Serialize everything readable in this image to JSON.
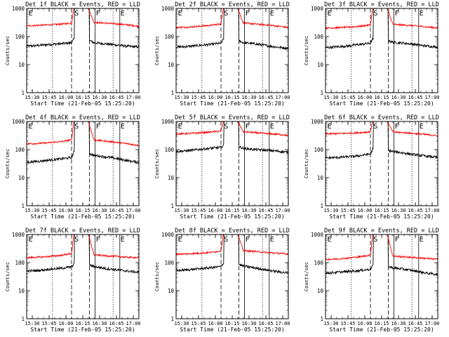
{
  "chart_data": {
    "type": "line",
    "grid": false,
    "yscale": "log",
    "ylim": [
      1,
      1000
    ],
    "xlim": [
      "15:25",
      "17:05"
    ],
    "xlabel": "Start Time (21-Feb-05 15:25:20)",
    "ylabel": "Counts/sec",
    "x_ticks": [
      "15:30",
      "15:45",
      "16:00",
      "16:15",
      "16:30",
      "16:45",
      "17:00"
    ],
    "y_ticks": [
      "1",
      "10",
      "100",
      "1000"
    ],
    "marker_lines": [
      {
        "time": "15:48",
        "label": "",
        "style": "dotted"
      },
      {
        "time": "16:05",
        "label": "",
        "style": "dashed"
      },
      {
        "time": "16:21",
        "label": "",
        "style": "dashed"
      },
      {
        "time": "16:26",
        "label": "",
        "style": "solid"
      },
      {
        "time": "16:42",
        "label": "",
        "style": "dotted"
      },
      {
        "time": "16:48",
        "label": "",
        "style": "solid"
      }
    ],
    "corner_marks": [
      {
        "label": "E",
        "time": "15:26"
      },
      {
        "label": "S",
        "time": "16:07"
      },
      {
        "label": "F",
        "time": "16:26"
      },
      {
        "label": "E",
        "time": "16:48"
      }
    ],
    "gap": [
      "16:08",
      "16:20"
    ],
    "panels": [
      {
        "title": "Det 1f BLACK = Events, RED = LLD",
        "series": [
          {
            "name": "Events",
            "color": "#000000",
            "x": [
              "15:25",
              "15:35",
              "15:45",
              "15:55",
              "16:05",
              "16:07",
              "16:20",
              "16:25",
              "16:35",
              "16:45",
              "16:55",
              "17:05"
            ],
            "y": [
              45,
              48,
              52,
              55,
              60,
              80,
              75,
              60,
              55,
              50,
              45,
              42
            ]
          },
          {
            "name": "LLD",
            "color": "#ff0000",
            "x": [
              "15:25",
              "15:35",
              "15:45",
              "15:55",
              "16:05",
              "16:07",
              "16:20",
              "16:25",
              "16:35",
              "16:45",
              "16:55",
              "17:05"
            ],
            "y": [
              240,
              250,
              260,
              275,
              300,
              1000,
              1000,
              320,
              300,
              280,
              260,
              230
            ]
          }
        ]
      },
      {
        "title": "Det 2f BLACK = Events, RED = LLD",
        "series": [
          {
            "name": "Events",
            "color": "#000000",
            "x": [
              "15:25",
              "15:35",
              "15:45",
              "15:55",
              "16:05",
              "16:07",
              "16:20",
              "16:25",
              "16:35",
              "16:45",
              "16:55",
              "17:05"
            ],
            "y": [
              42,
              44,
              48,
              52,
              58,
              80,
              75,
              60,
              55,
              48,
              42,
              38
            ]
          },
          {
            "name": "LLD",
            "color": "#ff0000",
            "x": [
              "15:25",
              "15:35",
              "15:45",
              "15:55",
              "16:05",
              "16:07",
              "16:20",
              "16:25",
              "16:35",
              "16:45",
              "16:55",
              "17:05"
            ],
            "y": [
              210,
              215,
              230,
              250,
              280,
              1000,
              1000,
              300,
              280,
              260,
              235,
              210
            ]
          }
        ]
      },
      {
        "title": "Det 3f BLACK = Events, RED = LLD",
        "series": [
          {
            "name": "Events",
            "color": "#000000",
            "x": [
              "15:25",
              "15:35",
              "15:45",
              "15:55",
              "16:05",
              "16:07",
              "16:20",
              "16:25",
              "16:35",
              "16:45",
              "16:55",
              "17:05"
            ],
            "y": [
              40,
              43,
              46,
              52,
              58,
              80,
              75,
              62,
              58,
              52,
              46,
              42
            ]
          },
          {
            "name": "LLD",
            "color": "#ff0000",
            "x": [
              "15:25",
              "15:35",
              "15:45",
              "15:55",
              "16:05",
              "16:07",
              "16:20",
              "16:25",
              "16:35",
              "16:45",
              "16:55",
              "17:05"
            ],
            "y": [
              200,
              205,
              215,
              230,
              260,
              1000,
              1000,
              270,
              255,
              240,
              220,
              200
            ]
          }
        ]
      },
      {
        "title": "Det 4f BLACK = Events, RED = LLD",
        "series": [
          {
            "name": "Events",
            "color": "#000000",
            "x": [
              "15:25",
              "15:35",
              "15:45",
              "15:55",
              "16:05",
              "16:07",
              "16:20",
              "16:25",
              "16:35",
              "16:45",
              "16:55",
              "17:05"
            ],
            "y": [
              35,
              38,
              42,
              46,
              52,
              80,
              75,
              62,
              55,
              48,
              40,
              35
            ]
          },
          {
            "name": "LLD",
            "color": "#ff0000",
            "x": [
              "15:25",
              "15:35",
              "15:45",
              "15:55",
              "16:05",
              "16:07",
              "16:20",
              "16:25",
              "16:35",
              "16:45",
              "16:55",
              "17:05"
            ],
            "y": [
              160,
              165,
              175,
              190,
              220,
              1000,
              1000,
              220,
              200,
              180,
              160,
              140
            ]
          }
        ]
      },
      {
        "title": "Det 5f BLACK = Events, RED = LLD",
        "series": [
          {
            "name": "Events",
            "color": "#000000",
            "x": [
              "15:25",
              "15:35",
              "15:45",
              "15:55",
              "16:05",
              "16:07",
              "16:20",
              "16:25",
              "16:35",
              "16:45",
              "16:55",
              "17:05"
            ],
            "y": [
              85,
              90,
              100,
              110,
              120,
              140,
              130,
              110,
              100,
              95,
              88,
              80
            ]
          },
          {
            "name": "LLD",
            "color": "#ff0000",
            "x": [
              "15:25",
              "15:35",
              "15:45",
              "15:55",
              "16:05",
              "16:07",
              "16:20",
              "16:25",
              "16:35",
              "16:45",
              "16:55",
              "17:05"
            ],
            "y": [
              360,
              370,
              390,
              420,
              450,
              1000,
              1000,
              430,
              400,
              370,
              350,
              320
            ]
          }
        ]
      },
      {
        "title": "Det 6f BLACK = Events, RED = LLD",
        "series": [
          {
            "name": "Events",
            "color": "#000000",
            "x": [
              "15:25",
              "15:35",
              "15:45",
              "15:55",
              "16:05",
              "16:07",
              "16:20",
              "16:25",
              "16:35",
              "16:45",
              "16:55",
              "17:05"
            ],
            "y": [
              50,
              52,
              55,
              60,
              70,
              100,
              95,
              85,
              75,
              65,
              58,
              52
            ]
          },
          {
            "name": "LLD",
            "color": "#ff0000",
            "x": [
              "15:25",
              "15:35",
              "15:45",
              "15:55",
              "16:05",
              "16:07",
              "16:20",
              "16:25",
              "16:35",
              "16:45",
              "16:55",
              "17:05"
            ],
            "y": [
              360,
              370,
              380,
              400,
              430,
              1000,
              1000,
              420,
              400,
              370,
              340,
              310
            ]
          }
        ]
      },
      {
        "title": "Det 7f BLACK = Events, RED = LLD",
        "series": [
          {
            "name": "Events",
            "color": "#000000",
            "x": [
              "15:25",
              "15:35",
              "15:45",
              "15:55",
              "16:05",
              "16:07",
              "16:20",
              "16:25",
              "16:35",
              "16:45",
              "16:55",
              "17:05"
            ],
            "y": [
              50,
              52,
              58,
              62,
              70,
              90,
              85,
              72,
              62,
              55,
              50,
              45
            ]
          },
          {
            "name": "LLD",
            "color": "#ff0000",
            "x": [
              "15:25",
              "15:35",
              "15:45",
              "15:55",
              "16:05",
              "16:07",
              "16:20",
              "16:25",
              "16:35",
              "16:45",
              "16:55",
              "17:05"
            ],
            "y": [
              150,
              155,
              165,
              180,
              210,
              1000,
              1000,
              190,
              175,
              165,
              155,
              150
            ]
          }
        ]
      },
      {
        "title": "Det 8f BLACK = Events, RED = LLD",
        "series": [
          {
            "name": "Events",
            "color": "#000000",
            "x": [
              "15:25",
              "15:35",
              "15:45",
              "15:55",
              "16:05",
              "16:07",
              "16:20",
              "16:25",
              "16:35",
              "16:45",
              "16:55",
              "17:05"
            ],
            "y": [
              52,
              55,
              60,
              65,
              72,
              95,
              90,
              75,
              65,
              55,
              48,
              42
            ]
          },
          {
            "name": "LLD",
            "color": "#ff0000",
            "x": [
              "15:25",
              "15:35",
              "15:45",
              "15:55",
              "16:05",
              "16:07",
              "16:20",
              "16:25",
              "16:35",
              "16:45",
              "16:55",
              "17:05"
            ],
            "y": [
              200,
              205,
              215,
              230,
              260,
              1000,
              1000,
              265,
              250,
              230,
              215,
              200
            ]
          }
        ]
      },
      {
        "title": "Det 9f BLACK = Events, RED = LLD",
        "series": [
          {
            "name": "Events",
            "color": "#000000",
            "x": [
              "15:25",
              "15:35",
              "15:45",
              "15:55",
              "16:05",
              "16:07",
              "16:20",
              "16:25",
              "16:35",
              "16:45",
              "16:55",
              "17:05"
            ],
            "y": [
              42,
              45,
              48,
              52,
              58,
              80,
              75,
              65,
              58,
              50,
              42,
              38
            ]
          },
          {
            "name": "LLD",
            "color": "#ff0000",
            "x": [
              "15:25",
              "15:35",
              "15:45",
              "15:55",
              "16:05",
              "16:07",
              "16:20",
              "16:25",
              "16:35",
              "16:45",
              "16:55",
              "17:05"
            ],
            "y": [
              130,
              135,
              145,
              160,
              185,
              1000,
              1000,
              170,
              160,
              150,
              140,
              130
            ]
          }
        ]
      }
    ]
  }
}
